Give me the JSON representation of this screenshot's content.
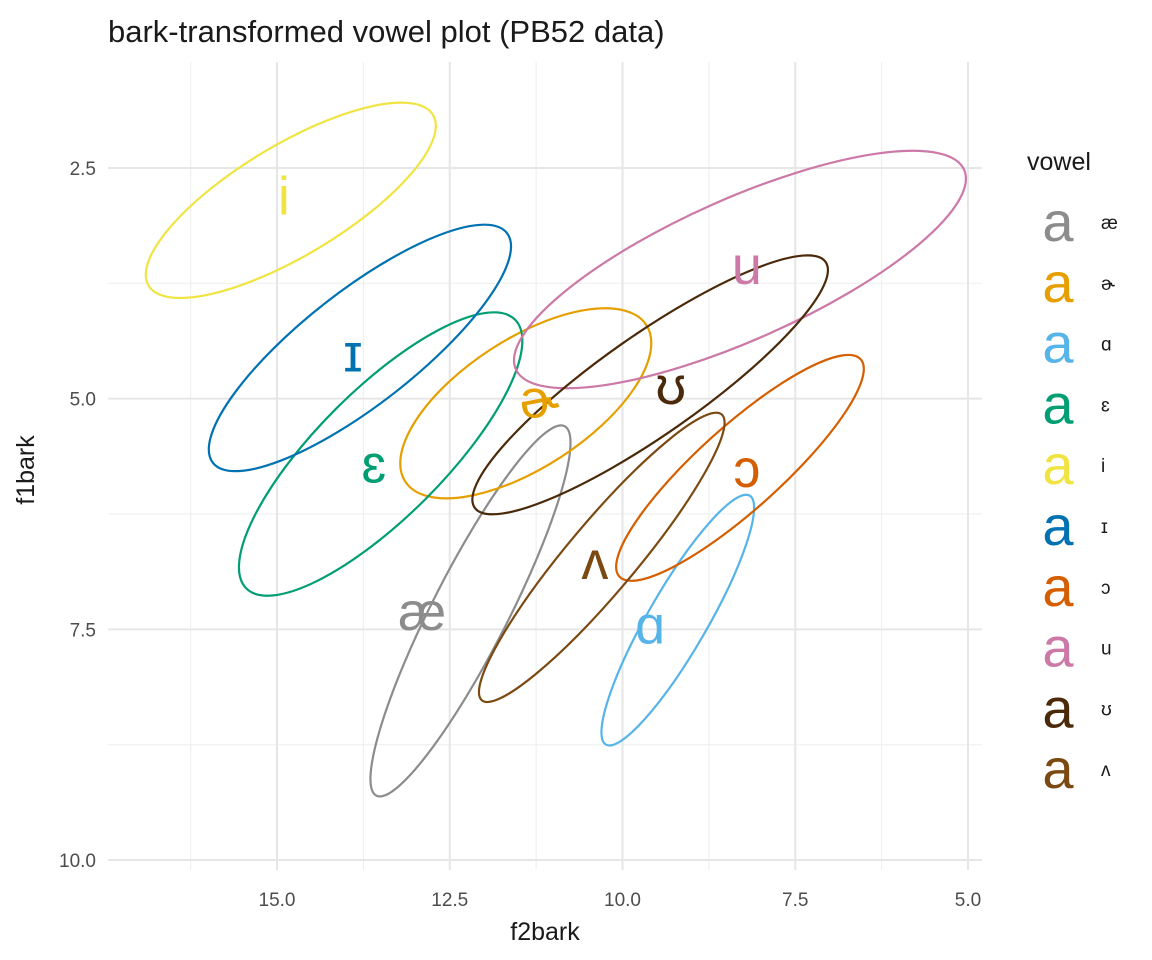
{
  "chart_data": {
    "type": "scatter",
    "title": "bark-transformed vowel plot (PB52 data)",
    "xlabel": "f2bark",
    "ylabel": "f1bark",
    "x_reversed": true,
    "y_reversed": true,
    "xlim": [
      17.0,
      4.9
    ],
    "ylim": [
      1.6,
      10.0
    ],
    "x_ticks": [
      15.0,
      12.5,
      10.0,
      7.5,
      5.0
    ],
    "x_tick_labels": [
      "15.0",
      "12.5",
      "10.0",
      "7.5",
      "5.0"
    ],
    "y_ticks": [
      2.5,
      5.0,
      7.5,
      10.0
    ],
    "y_tick_labels": [
      "2.5",
      "5.0",
      "7.5",
      "10.0"
    ],
    "grid": true,
    "legend": {
      "title": "vowel",
      "placement": "right",
      "key_glyph": "a"
    },
    "series": [
      {
        "name": "æ",
        "color": "#8c8c8c",
        "label_x": 12.9,
        "label_y": 7.3,
        "ellipse": {
          "cx": 12.2,
          "cy": 7.3,
          "rx": 3.0,
          "ry": 0.55,
          "angle": -63
        }
      },
      {
        "name": "ɚ",
        "color": "#e69f00",
        "label_x": 11.2,
        "label_y": 5.0,
        "ellipse": {
          "cx": 11.4,
          "cy": 5.05,
          "rx": 2.08,
          "ry": 0.93,
          "angle": -33
        }
      },
      {
        "name": "ɑ",
        "color": "#56b4e9",
        "label_x": 9.6,
        "label_y": 7.45,
        "ellipse": {
          "cx": 9.2,
          "cy": 7.4,
          "rx": 2.08,
          "ry": 0.43,
          "angle": -60
        }
      },
      {
        "name": "ɛ",
        "color": "#009e73",
        "label_x": 13.6,
        "label_y": 5.7,
        "ellipse": {
          "cx": 13.5,
          "cy": 5.6,
          "rx": 2.75,
          "ry": 0.92,
          "angle": -45
        }
      },
      {
        "name": "i",
        "color": "#f0e442",
        "label_x": 14.9,
        "label_y": 2.8,
        "ellipse": {
          "cx": 14.8,
          "cy": 2.85,
          "rx": 2.4,
          "ry": 0.8,
          "angle": -31
        }
      },
      {
        "name": "ɪ",
        "color": "#0072b2",
        "label_x": 13.9,
        "label_y": 4.5,
        "ellipse": {
          "cx": 13.8,
          "cy": 4.45,
          "rx": 2.7,
          "ry": 0.82,
          "angle": -38
        }
      },
      {
        "name": "ɔ",
        "color": "#d55e00",
        "label_x": 8.2,
        "label_y": 5.75,
        "ellipse": {
          "cx": 8.3,
          "cy": 5.75,
          "rx": 2.35,
          "ry": 0.6,
          "angle": -42
        }
      },
      {
        "name": "u",
        "color": "#cc79a7",
        "label_x": 8.2,
        "label_y": 3.55,
        "ellipse": {
          "cx": 8.3,
          "cy": 3.6,
          "rx": 3.55,
          "ry": 1.02,
          "angle": -24
        }
      },
      {
        "name": "ʊ",
        "color": "#4a2a0a",
        "label_x": 9.3,
        "label_y": 4.85,
        "ellipse": {
          "cx": 9.6,
          "cy": 4.85,
          "rx": 3.1,
          "ry": 0.72,
          "angle": -35
        }
      },
      {
        "name": "ʌ",
        "color": "#7b4a12",
        "label_x": 10.4,
        "label_y": 6.75,
        "ellipse": {
          "cx": 10.3,
          "cy": 6.72,
          "rx": 2.7,
          "ry": 0.5,
          "angle": -50
        }
      }
    ]
  }
}
